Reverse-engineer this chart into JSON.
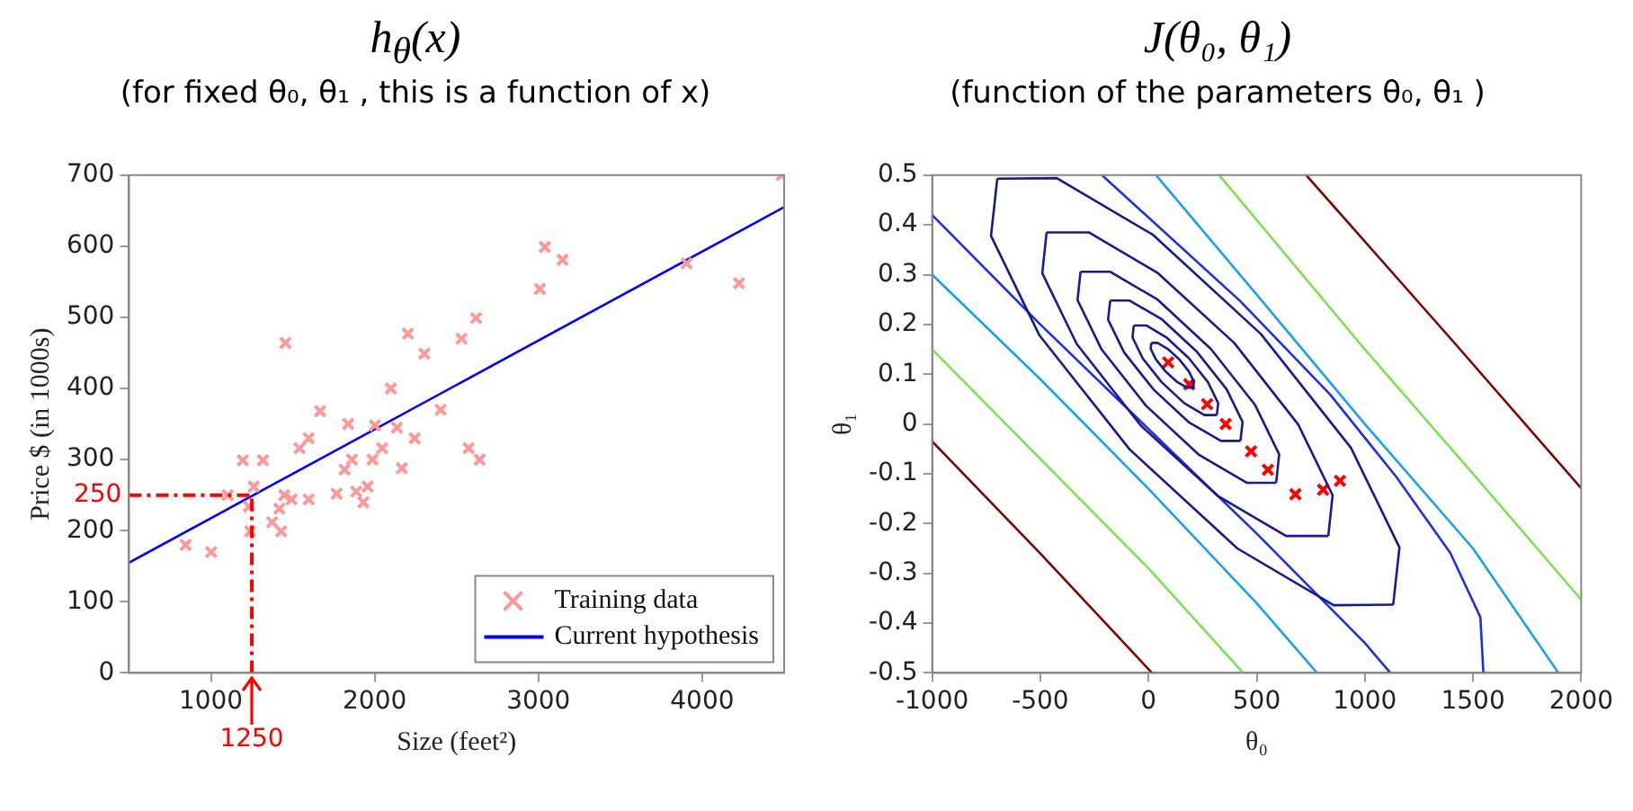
{
  "chart_data": [
    {
      "type": "scatter",
      "title": "h$_{θ}$(x)",
      "subtitle": "(for fixed  θ₀, θ₁ , this is a function of x)",
      "xlabel": "Size (feet²)",
      "ylabel": "Price $ (in 1000s)",
      "xlim": [
        500,
        4500
      ],
      "xticks": [
        1000,
        2000,
        3000,
        4000
      ],
      "ylim": [
        0,
        700
      ],
      "yticks": [
        0,
        100,
        200,
        300,
        400,
        500,
        600,
        700
      ],
      "grid": false,
      "legend": "bottom right",
      "ref_lines": [
        {
          "axis": "y",
          "value": 250,
          "label": "250",
          "color": "#ff0000",
          "line_style": "dashed"
        },
        {
          "axis": "x",
          "value": 1250,
          "label": "1250",
          "color": "#ff0000",
          "line_style": "dashed"
        }
      ],
      "series": [
        {
          "name": "Training data",
          "type": "scatter",
          "marker": "cross",
          "color": "#ff9999",
          "x": [
            846,
            1002,
            1102,
            1195,
            1232,
            1240,
            1262,
            1318,
            1374,
            1418,
            1429,
            1448,
            1455,
            1493,
            1541,
            1597,
            1597,
            1667,
            1768,
            1816,
            1838,
            1861,
            1887,
            1931,
            1957,
            1987,
            2002,
            2046,
            2099,
            2136,
            2166,
            2203,
            2244,
            2303,
            2403,
            2530,
            2574,
            2619,
            2641,
            3009,
            3039,
            3147,
            3905,
            4225,
            4485
          ],
          "values": [
            180,
            170,
            250,
            299,
            234,
            199,
            262,
            299,
            212,
            231,
            199,
            250,
            464,
            244,
            316,
            330,
            244,
            368,
            252,
            286,
            350,
            300,
            255,
            240,
            262,
            300,
            348,
            316,
            400,
            345,
            288,
            477,
            330,
            449,
            370,
            470,
            316,
            499,
            300,
            540,
            599,
            581,
            576,
            548,
            700
          ]
        },
        {
          "name": "Current hypothesis",
          "type": "line",
          "color": "#0000ff",
          "x": [
            500,
            4500
          ],
          "values": [
            155,
            655
          ]
        }
      ]
    },
    {
      "type": "line",
      "title": "J(θ₀, θ₁)",
      "subtitle": "(function of the parameters  θ₀, θ₁ )",
      "xlabel": "θ₀",
      "ylabel": "θ₁",
      "xlim": [
        -1000,
        2000
      ],
      "xticks": [
        -1000,
        -500,
        0,
        500,
        1000,
        1500,
        2000
      ],
      "ylim": [
        -0.5,
        0.5
      ],
      "yticks": [
        -0.5,
        -0.4,
        -0.3,
        -0.2,
        -0.1,
        0,
        0.1,
        0.2,
        0.3,
        0.4,
        0.5
      ],
      "grid": false,
      "legend": false,
      "series": [
        {
          "color": "#1a1a8c",
          "x": [
            1131,
            856,
            411,
            -87,
            -504,
            -728,
            -699
          ],
          "values": [
            -0.363,
            -0.364,
            -0.25,
            -0.051,
            0.178,
            0.378,
            0.493
          ]
        },
        {
          "color": "#1a1a8c",
          "x": [
            -699,
            -424,
            21,
            519,
            936,
            1160,
            1131
          ],
          "values": [
            0.493,
            0.494,
            0.38,
            0.181,
            -0.048,
            -0.248,
            -0.363
          ]
        },
        {
          "color": "#1a1a8c",
          "x": [
            831,
            636,
            319,
            -36,
            -332,
            -491,
            -471
          ],
          "values": [
            -0.225,
            -0.225,
            -0.144,
            -0.003,
            0.161,
            0.303,
            0.385
          ]
        },
        {
          "color": "#1a1a8c",
          "x": [
            -471,
            -276,
            41,
            396,
            692,
            851,
            831
          ],
          "values": [
            0.385,
            0.385,
            0.304,
            0.163,
            -0.001,
            -0.143,
            -0.225
          ]
        },
        {
          "color": "#1a1a8c",
          "x": [
            590,
            454,
            234,
            -12,
            -217,
            -328,
            -314
          ],
          "values": [
            -0.118,
            -0.118,
            -0.062,
            0.037,
            0.15,
            0.249,
            0.306
          ]
        },
        {
          "color": "#1a1a8c",
          "x": [
            -314,
            -178,
            42,
            288,
            493,
            604,
            590
          ],
          "values": [
            0.306,
            0.306,
            0.25,
            0.151,
            0.038,
            -0.061,
            -0.118
          ]
        },
        {
          "color": "#1a1a8c",
          "x": [
            425,
            335,
            188,
            24,
            -113,
            -187,
            -177
          ],
          "values": [
            -0.034,
            -0.034,
            0.003,
            0.069,
            0.144,
            0.21,
            0.248
          ]
        },
        {
          "color": "#1a1a8c",
          "x": [
            -177,
            -87,
            60,
            224,
            361,
            435,
            425
          ],
          "values": [
            0.248,
            0.248,
            0.211,
            0.145,
            0.07,
            0.004,
            -0.034
          ]
        },
        {
          "color": "#1a1a8c",
          "x": [
            316,
            258,
            165,
            61,
            -27,
            -74,
            -68
          ],
          "values": [
            0.018,
            0.018,
            0.042,
            0.084,
            0.132,
            0.174,
            0.198
          ]
        },
        {
          "color": "#1a1a8c",
          "x": [
            -68,
            -10,
            83,
            187,
            275,
            322,
            316
          ],
          "values": [
            0.198,
            0.198,
            0.174,
            0.132,
            0.084,
            0.042,
            0.018
          ]
        },
        {
          "color": "#1a1a8c",
          "x": [
            207,
            178,
            131,
            78,
            34,
            10,
            13
          ],
          "values": [
            0.073,
            0.073,
            0.085,
            0.106,
            0.13,
            0.151,
            0.163
          ]
        },
        {
          "color": "#1a1a8c",
          "x": [
            13,
            42,
            89,
            142,
            186,
            210,
            207
          ],
          "values": [
            0.163,
            0.163,
            0.151,
            0.13,
            0.106,
            0.085,
            0.073
          ]
        },
        {
          "color": "#1f2fe0",
          "x": [
            -1000,
            -500,
            0,
            500,
            1000,
            1118
          ],
          "values": [
            0.42,
            0.2,
            -0.01,
            -0.22,
            -0.44,
            -0.5
          ]
        },
        {
          "color": "#1f2fe0",
          "x": [
            -215,
            424,
            840,
            1145,
            1395,
            1534,
            1548
          ],
          "values": [
            0.5,
            0.247,
            0.059,
            -0.106,
            -0.259,
            -0.388,
            -0.5
          ]
        },
        {
          "color": "#1aa0f0",
          "x": [
            -1000,
            -500,
            0,
            500,
            779
          ],
          "values": [
            0.3,
            0.09,
            -0.13,
            -0.36,
            -0.5
          ]
        },
        {
          "color": "#1aa0f0",
          "x": [
            35,
            500,
            1000,
            1500,
            1895
          ],
          "values": [
            0.5,
            0.26,
            0,
            -0.25,
            -0.5
          ]
        },
        {
          "color": "#80e050",
          "x": [
            -1000,
            -500,
            0,
            438
          ],
          "values": [
            0.15,
            -0.07,
            -0.29,
            -0.5
          ]
        },
        {
          "color": "#80e050",
          "x": [
            327,
            1000,
            1500,
            2000
          ],
          "values": [
            0.5,
            0.15,
            -0.1,
            -0.353
          ]
        },
        {
          "color": "#800000",
          "x": [
            -1000,
            -500,
            16
          ],
          "values": [
            -0.035,
            -0.26,
            -0.5
          ]
        },
        {
          "color": "#800000",
          "x": [
            729,
            1400,
            2000
          ],
          "values": [
            0.5,
            0.17,
            -0.129
          ]
        },
        {
          "type": "scatter",
          "marker": "cross",
          "color": "#ff0000",
          "x": [
            91,
            188,
            271,
            357,
            474,
            552,
            679,
            807,
            885
          ],
          "values": [
            0.124,
            0.08,
            0.04,
            0,
            -0.055,
            -0.092,
            -0.141,
            -0.132,
            -0.114
          ]
        }
      ]
    }
  ]
}
